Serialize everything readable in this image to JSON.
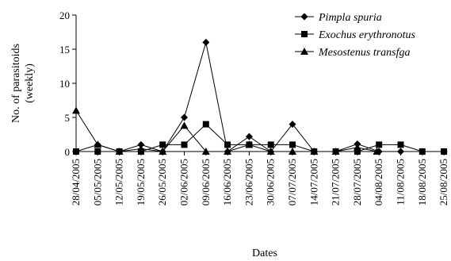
{
  "chart_data": {
    "type": "line",
    "title": "",
    "xlabel": "Dates",
    "ylabel_lines": [
      "No. of parasitoids",
      "(weekly)"
    ],
    "ylim": [
      0,
      20
    ],
    "yticks": [
      0,
      5,
      10,
      15,
      20
    ],
    "categories": [
      "28/04/2005",
      "05/05/2005",
      "12/05/2005",
      "19/05/2005",
      "26/05/2005",
      "02/06/2005",
      "09/06/2005",
      "16/06/2005",
      "23/06/2005",
      "30/06/2005",
      "07/07/2005",
      "14/07/2005",
      "21/07/2005",
      "28/07/2005",
      "04/08/2005",
      "11/08/2005",
      "18/08/2005",
      "25/08/2005"
    ],
    "legend_position": "top-right",
    "series": [
      {
        "name": "Pimpla spuria",
        "marker": "diamond",
        "x": [
          0,
          1,
          2,
          3,
          4,
          5,
          6,
          7,
          8,
          9,
          10,
          11,
          12,
          13,
          14,
          15,
          16,
          17
        ],
        "values": [
          0,
          1,
          0,
          1,
          0,
          5,
          16,
          0,
          2.2,
          0,
          4,
          0,
          0,
          1.1,
          0,
          0,
          0,
          0
        ]
      },
      {
        "name": "Exochus erythronotus",
        "marker": "square",
        "x": [
          0,
          1,
          2,
          3,
          4,
          5,
          6,
          7,
          8,
          9,
          10,
          11,
          12,
          13,
          14,
          15,
          16,
          17
        ],
        "values": [
          0,
          0,
          0,
          0,
          1,
          1,
          4,
          1,
          1,
          1,
          1,
          0,
          0,
          0,
          1,
          1,
          0,
          0
        ]
      },
      {
        "name": "Mesostenus transfga",
        "marker": "triangle",
        "x": [
          0,
          1,
          2,
          3,
          4,
          5,
          6,
          7,
          8,
          9,
          10,
          11,
          12,
          13,
          13.9
        ],
        "values": [
          6,
          1,
          0,
          0.4,
          0,
          3.8,
          0,
          0,
          1,
          0,
          0,
          0,
          0,
          0.6,
          0
        ]
      }
    ]
  }
}
